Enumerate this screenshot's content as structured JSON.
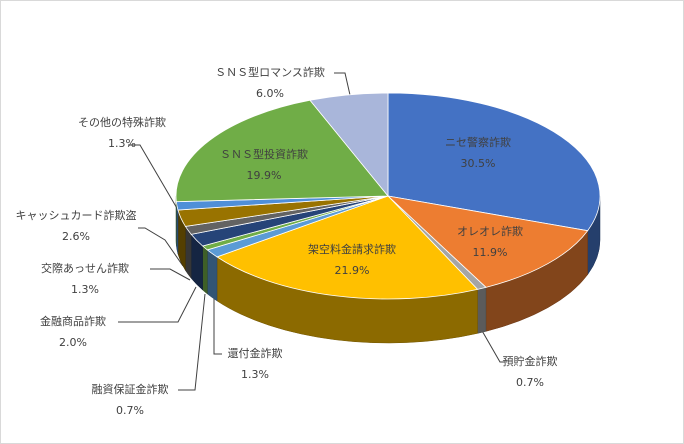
{
  "chart_data": {
    "type": "pie3d",
    "categories": [
      "ニセ警察詐欺",
      "オレオレ詐欺",
      "預貯金詐欺",
      "架空料金請求詐欺",
      "還付金詐欺",
      "融資保証金詐欺",
      "金融商品詐欺",
      "交際あっせん詐欺",
      "キャッシュカード詐欺盗",
      "その他の特殊詐欺",
      "ＳＮＳ型投資詐欺",
      "ＳＮＳ型ロマンス詐欺"
    ],
    "values": [
      30.5,
      11.9,
      0.7,
      21.9,
      1.3,
      0.7,
      2.0,
      1.3,
      2.6,
      1.3,
      19.9,
      6.0
    ],
    "value_labels": [
      "30.5%",
      "11.9%",
      "0.7%",
      "21.9%",
      "1.3%",
      "0.7%",
      "2.0%",
      "1.3%",
      "2.6%",
      "1.3%",
      "19.9%",
      "6.0%"
    ],
    "colors": [
      "#4472c4",
      "#ed7d31",
      "#a5a5a5",
      "#ffc000",
      "#5b9bd5",
      "#70ad47",
      "#264478",
      "#636363",
      "#997300",
      "#4f8fd8",
      "#70ad47",
      "#a9b6da"
    ]
  }
}
